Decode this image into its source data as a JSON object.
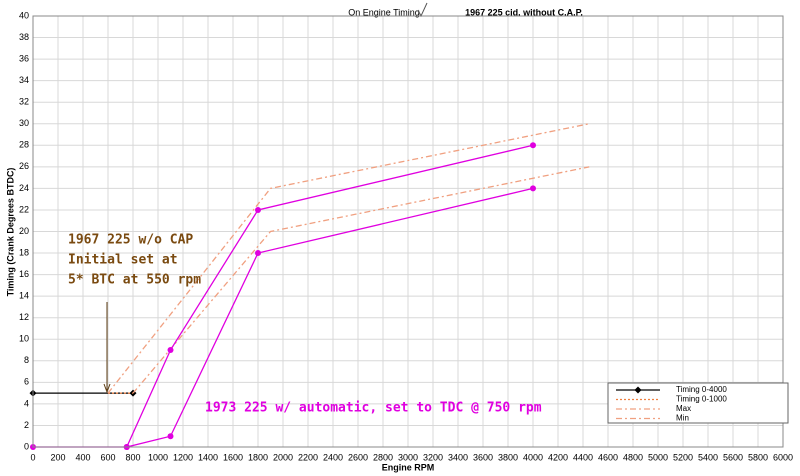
{
  "chart_data": {
    "type": "line",
    "caption": "On Engine Timing",
    "title": "1967 225 cid. without C.A.P.",
    "x_label": "Engine RPM",
    "y_label": "Timing (Crank Degrees BTDC)",
    "xlim": [
      0,
      6000
    ],
    "ylim": [
      0,
      40
    ],
    "xticks": [
      0,
      200,
      400,
      600,
      800,
      1000,
      1200,
      1400,
      1600,
      1800,
      2000,
      2200,
      2400,
      2600,
      2800,
      3000,
      3200,
      3400,
      3600,
      3800,
      4000,
      4200,
      4400,
      4600,
      4800,
      5000,
      5200,
      5400,
      5600,
      5800,
      6000
    ],
    "yticks": [
      0,
      2,
      4,
      6,
      8,
      10,
      12,
      14,
      16,
      18,
      20,
      22,
      24,
      26,
      28,
      30,
      32,
      34,
      36,
      38,
      40
    ],
    "grid": true,
    "series": [
      {
        "name": "Timing 0-4000",
        "color": "#000000",
        "style": "solid",
        "marker": "diamond",
        "x": [
          0,
          800
        ],
        "values": [
          5,
          5
        ]
      },
      {
        "name": "Timing 0-1000",
        "color": "#f08040",
        "style": "dotted",
        "marker": "none",
        "x": [
          600,
          800
        ],
        "values": [
          5,
          5
        ]
      },
      {
        "name": "Max",
        "color": "#f0a080",
        "style": "dashdot",
        "marker": "none",
        "x": [
          600,
          1900,
          4450
        ],
        "values": [
          5,
          24,
          30
        ]
      },
      {
        "name": "Min",
        "color": "#f0a080",
        "style": "dashdot",
        "marker": "none",
        "x": [
          800,
          1900,
          4450
        ],
        "values": [
          5,
          20,
          26
        ]
      },
      {
        "color": "#e000e0",
        "style": "solid",
        "marker": "circle",
        "x": [
          750,
          1100,
          1800,
          4000
        ],
        "values": [
          0,
          9,
          22,
          28
        ]
      },
      {
        "color": "#e000e0",
        "style": "solid",
        "marker": "circle",
        "x": [
          0,
          750,
          1100,
          1800,
          4000
        ],
        "values": [
          0,
          0,
          1,
          18,
          24
        ]
      }
    ],
    "annotations": [
      {
        "text": "1967 225 w/o CAP",
        "color": "#7a4a10"
      },
      {
        "text": "Initial set at",
        "color": "#7a4a10"
      },
      {
        "text": "5* BTC at 550 rpm",
        "color": "#7a4a10"
      },
      {
        "text": "1973 225 w/ automatic, set to TDC @ 750 rpm",
        "color": "#e000e0"
      }
    ]
  }
}
